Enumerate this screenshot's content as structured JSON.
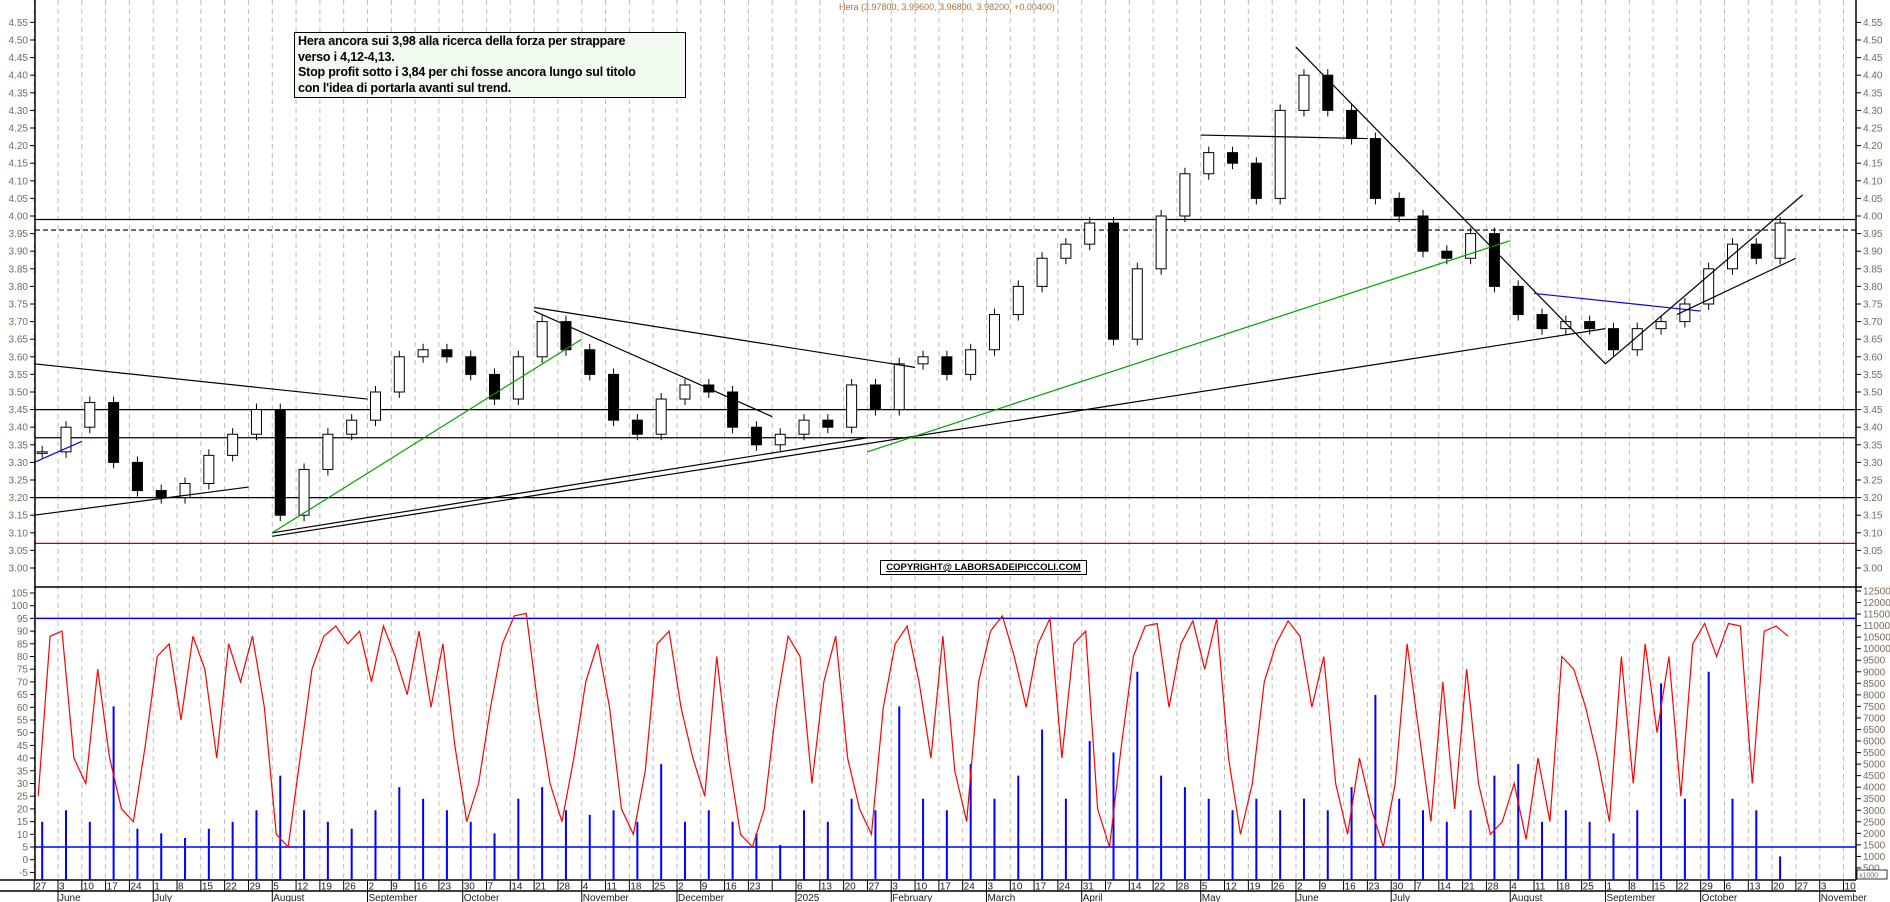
{
  "header": {
    "quote": "Hera (3.97800, 3.99600, 3.96800, 3.98200, +0.00400)"
  },
  "note": {
    "lines": [
      "Hera ancora sui 3,98 alla ricerca della forza per strappare",
      "verso i 4,12-4,13.",
      "Stop profit sotto i 3,84 per chi fosse ancora lungo sul titolo",
      "con l'idea di portarla avanti sul trend."
    ]
  },
  "copyright": "COPYRIGHT@ LABORSADEIPICCOLI.COM",
  "colors": {
    "up_candle": "#ffffff",
    "down_candle": "#000000",
    "oscillator": "#ff0000",
    "volume": "#0000ff",
    "support_red": "#c00000",
    "trend_green": "#00a000",
    "trend_blue": "#0000ff",
    "dashed_level": "#004040"
  },
  "chart_data": [
    {
      "type": "candlestick",
      "panel": "price",
      "note": "weekly approximation of daily candles",
      "start_week": "2024-05-27",
      "weekly_close": [
        3.33,
        3.4,
        3.47,
        3.3,
        3.22,
        3.2,
        3.24,
        3.32,
        3.38,
        3.45,
        3.15,
        3.28,
        3.38,
        3.42,
        3.5,
        3.6,
        3.62,
        3.6,
        3.55,
        3.48,
        3.6,
        3.7,
        3.62,
        3.55,
        3.42,
        3.38,
        3.48,
        3.52,
        3.5,
        3.4,
        3.35,
        3.38,
        3.42,
        3.4,
        3.52,
        3.45,
        3.58,
        3.6,
        3.55,
        3.62,
        3.72,
        3.8,
        3.88,
        3.92,
        3.98,
        3.65,
        3.85,
        4.0,
        4.12,
        4.18,
        4.15,
        4.05,
        4.3,
        4.4,
        4.3,
        4.22,
        4.05,
        4.0,
        3.9,
        3.88,
        3.95,
        3.8,
        3.72,
        3.68,
        3.7,
        3.68,
        3.62,
        3.68,
        3.7,
        3.75,
        3.85,
        3.92,
        3.88,
        3.98
      ],
      "ylim": [
        3.0,
        4.55
      ],
      "y_ticks": [
        "4.55",
        "4.50",
        "4.45",
        "4.40",
        "4.35",
        "4.30",
        "4.25",
        "4.20",
        "4.15",
        "4.10",
        "4.05",
        "4.00",
        "3.95",
        "3.90",
        "3.85",
        "3.80",
        "3.75",
        "3.70",
        "3.65",
        "3.60",
        "3.55",
        "3.50",
        "3.45",
        "3.40",
        "3.35",
        "3.30",
        "3.25",
        "3.20",
        "3.15",
        "3.10",
        "3.05",
        "3.00"
      ],
      "horizontal_levels": [
        {
          "price": 3.99,
          "style": "solid",
          "color": "#000000"
        },
        {
          "price": 3.96,
          "style": "dashed",
          "color": "#004040"
        },
        {
          "price": 3.45,
          "style": "solid",
          "color": "#000000"
        },
        {
          "price": 3.37,
          "style": "solid",
          "color": "#000000"
        },
        {
          "price": 3.2,
          "style": "solid",
          "color": "#000000"
        },
        {
          "price": 3.07,
          "style": "solid",
          "color": "#c00000"
        }
      ],
      "trendlines": [
        {
          "from": [
            "2024-05-27",
            3.58
          ],
          "to": [
            "2024-09-02",
            3.48
          ],
          "color": "#000000"
        },
        {
          "from": [
            "2024-05-27",
            3.15
          ],
          "to": [
            "2024-07-29",
            3.23
          ],
          "color": "#000000"
        },
        {
          "from": [
            "2024-08-05",
            3.1
          ],
          "to": [
            "2025-01-27",
            3.37
          ],
          "color": "#000000"
        },
        {
          "from": [
            "2024-08-05",
            3.09
          ],
          "to": [
            "2025-09-01",
            3.68
          ],
          "color": "#000000"
        },
        {
          "from": [
            "2024-08-05",
            3.1
          ],
          "to": [
            "2024-11-04",
            3.65
          ],
          "color": "#00a000"
        },
        {
          "from": [
            "2024-10-21",
            3.74
          ],
          "to": [
            "2025-02-10",
            3.57
          ],
          "color": "#000000"
        },
        {
          "from": [
            "2024-10-21",
            3.73
          ],
          "to": [
            "2024-12-30",
            3.43
          ],
          "color": "#000000"
        },
        {
          "from": [
            "2025-01-27",
            3.33
          ],
          "to": [
            "2025-08-04",
            3.93
          ],
          "color": "#00a000"
        },
        {
          "from": [
            "2025-05-05",
            4.23
          ],
          "to": [
            "2025-06-23",
            4.22
          ],
          "color": "#000000"
        },
        {
          "from": [
            "2025-06-02",
            4.48
          ],
          "to": [
            "2025-09-01",
            3.58
          ],
          "color": "#000000"
        },
        {
          "from": [
            "2025-08-11",
            3.78
          ],
          "to": [
            "2025-09-29",
            3.73
          ],
          "color": "#0000ff"
        },
        {
          "from": [
            "2025-09-01",
            3.58
          ],
          "to": [
            "2025-10-29",
            4.06
          ],
          "color": "#000000"
        },
        {
          "from": [
            "2025-09-22",
            3.72
          ],
          "to": [
            "2025-10-27",
            3.88
          ],
          "color": "#000000"
        },
        {
          "from": [
            "2024-05-27",
            3.3
          ],
          "to": [
            "2024-06-10",
            3.36
          ],
          "color": "#0000ff"
        }
      ]
    },
    {
      "type": "line",
      "panel": "oscillator",
      "start_date": "2024-05-27",
      "step_days": 3.5,
      "values": [
        25,
        88,
        90,
        40,
        30,
        75,
        40,
        20,
        15,
        45,
        80,
        85,
        55,
        88,
        75,
        40,
        85,
        70,
        88,
        60,
        10,
        5,
        40,
        75,
        88,
        92,
        85,
        90,
        70,
        92,
        80,
        65,
        90,
        60,
        85,
        45,
        15,
        30,
        60,
        85,
        96,
        97,
        60,
        30,
        15,
        40,
        70,
        85,
        60,
        20,
        10,
        35,
        85,
        90,
        60,
        40,
        25,
        80,
        40,
        10,
        5,
        20,
        60,
        88,
        80,
        30,
        70,
        88,
        40,
        20,
        10,
        60,
        85,
        92,
        70,
        40,
        88,
        35,
        15,
        70,
        90,
        96,
        80,
        60,
        85,
        95,
        40,
        85,
        90,
        20,
        5,
        45,
        80,
        92,
        93,
        60,
        85,
        94,
        75,
        95,
        40,
        10,
        30,
        70,
        85,
        94,
        88,
        60,
        80,
        30,
        10,
        40,
        20,
        5,
        30,
        85,
        50,
        15,
        70,
        20,
        75,
        30,
        10,
        15,
        30,
        8,
        40,
        15,
        80,
        75,
        60,
        40,
        15,
        80,
        30,
        85,
        50,
        80,
        25,
        85,
        93,
        80,
        93,
        92,
        30,
        90,
        92,
        88
      ],
      "levels": [
        95,
        5
      ],
      "ylim": [
        -7,
        107
      ],
      "y_ticks": [
        "105",
        "100",
        "95",
        "90",
        "85",
        "80",
        "75",
        "70",
        "65",
        "60",
        "55",
        "50",
        "45",
        "40",
        "35",
        "30",
        "25",
        "20",
        "15",
        "10",
        "5",
        "0",
        "-5"
      ]
    },
    {
      "type": "bar",
      "panel": "volume",
      "unit_label": "x1000",
      "start_week": "2024-05-27",
      "weekly_values": [
        2500,
        3000,
        2500,
        7500,
        2200,
        2000,
        1800,
        2200,
        2500,
        3000,
        4500,
        3000,
        2500,
        2200,
        3000,
        4000,
        3500,
        3000,
        2500,
        2000,
        3500,
        4000,
        3000,
        2800,
        3000,
        2500,
        5000,
        2500,
        3000,
        2500,
        2000,
        1500,
        3000,
        2500,
        3500,
        3000,
        7500,
        3500,
        3000,
        5000,
        3500,
        4500,
        6500,
        3500,
        6000,
        5500,
        9000,
        4500,
        4000,
        3500,
        3000,
        3500,
        3000,
        3500,
        3000,
        4000,
        8000,
        3500,
        3000,
        2500,
        3000,
        4500,
        5000,
        2500,
        3000,
        2500,
        2000,
        3000,
        8500,
        3500,
        9000,
        3500,
        3000,
        1000
      ],
      "y_ticks": [
        "12500",
        "12000",
        "11500",
        "11000",
        "10500",
        "10000",
        "9500",
        "9000",
        "8500",
        "8000",
        "7500",
        "7000",
        "6500",
        "6000",
        "5500",
        "5000",
        "4500",
        "4000",
        "3500",
        "3000",
        "2500",
        "2000",
        "1500",
        "1000",
        "500"
      ]
    }
  ],
  "x_axis": {
    "first_tick": "2024-05-27",
    "week_labels": [
      "27",
      "3",
      "10",
      "17",
      "24",
      "1",
      "8",
      "15",
      "22",
      "29",
      "5",
      "12",
      "19",
      "26",
      "2",
      "9",
      "16",
      "23",
      "30",
      "7",
      "14",
      "21",
      "28",
      "4",
      "11",
      "18",
      "25",
      "2",
      "9",
      "16",
      "23",
      "",
      "6",
      "13",
      "20",
      "27",
      "3",
      "10",
      "17",
      "24",
      "3",
      "10",
      "17",
      "24",
      "31",
      "7",
      "14",
      "22",
      "28",
      "5",
      "12",
      "19",
      "26",
      "2",
      "9",
      "16",
      "23",
      "30",
      "7",
      "14",
      "21",
      "28",
      "4",
      "11",
      "18",
      "25",
      "1",
      "8",
      "15",
      "22",
      "29",
      "6",
      "13",
      "20",
      "27",
      "3",
      "10"
    ],
    "months": [
      {
        "label": "June",
        "date": "2024-06-03"
      },
      {
        "label": "July",
        "date": "2024-07-01"
      },
      {
        "label": "August",
        "date": "2024-08-05"
      },
      {
        "label": "September",
        "date": "2024-09-02"
      },
      {
        "label": "October",
        "date": "2024-09-30"
      },
      {
        "label": "November",
        "date": "2024-11-04"
      },
      {
        "label": "December",
        "date": "2024-12-02"
      },
      {
        "label": "2025",
        "date": "2025-01-06"
      },
      {
        "label": "February",
        "date": "2025-02-03"
      },
      {
        "label": "March",
        "date": "2025-03-03"
      },
      {
        "label": "April",
        "date": "2025-03-31"
      },
      {
        "label": "May",
        "date": "2025-05-05"
      },
      {
        "label": "June",
        "date": "2025-06-02"
      },
      {
        "label": "July",
        "date": "2025-06-30"
      },
      {
        "label": "August",
        "date": "2025-08-04"
      },
      {
        "label": "September",
        "date": "2025-09-01"
      },
      {
        "label": "October",
        "date": "2025-09-29"
      },
      {
        "label": "November",
        "date": "2025-11-03"
      }
    ]
  }
}
